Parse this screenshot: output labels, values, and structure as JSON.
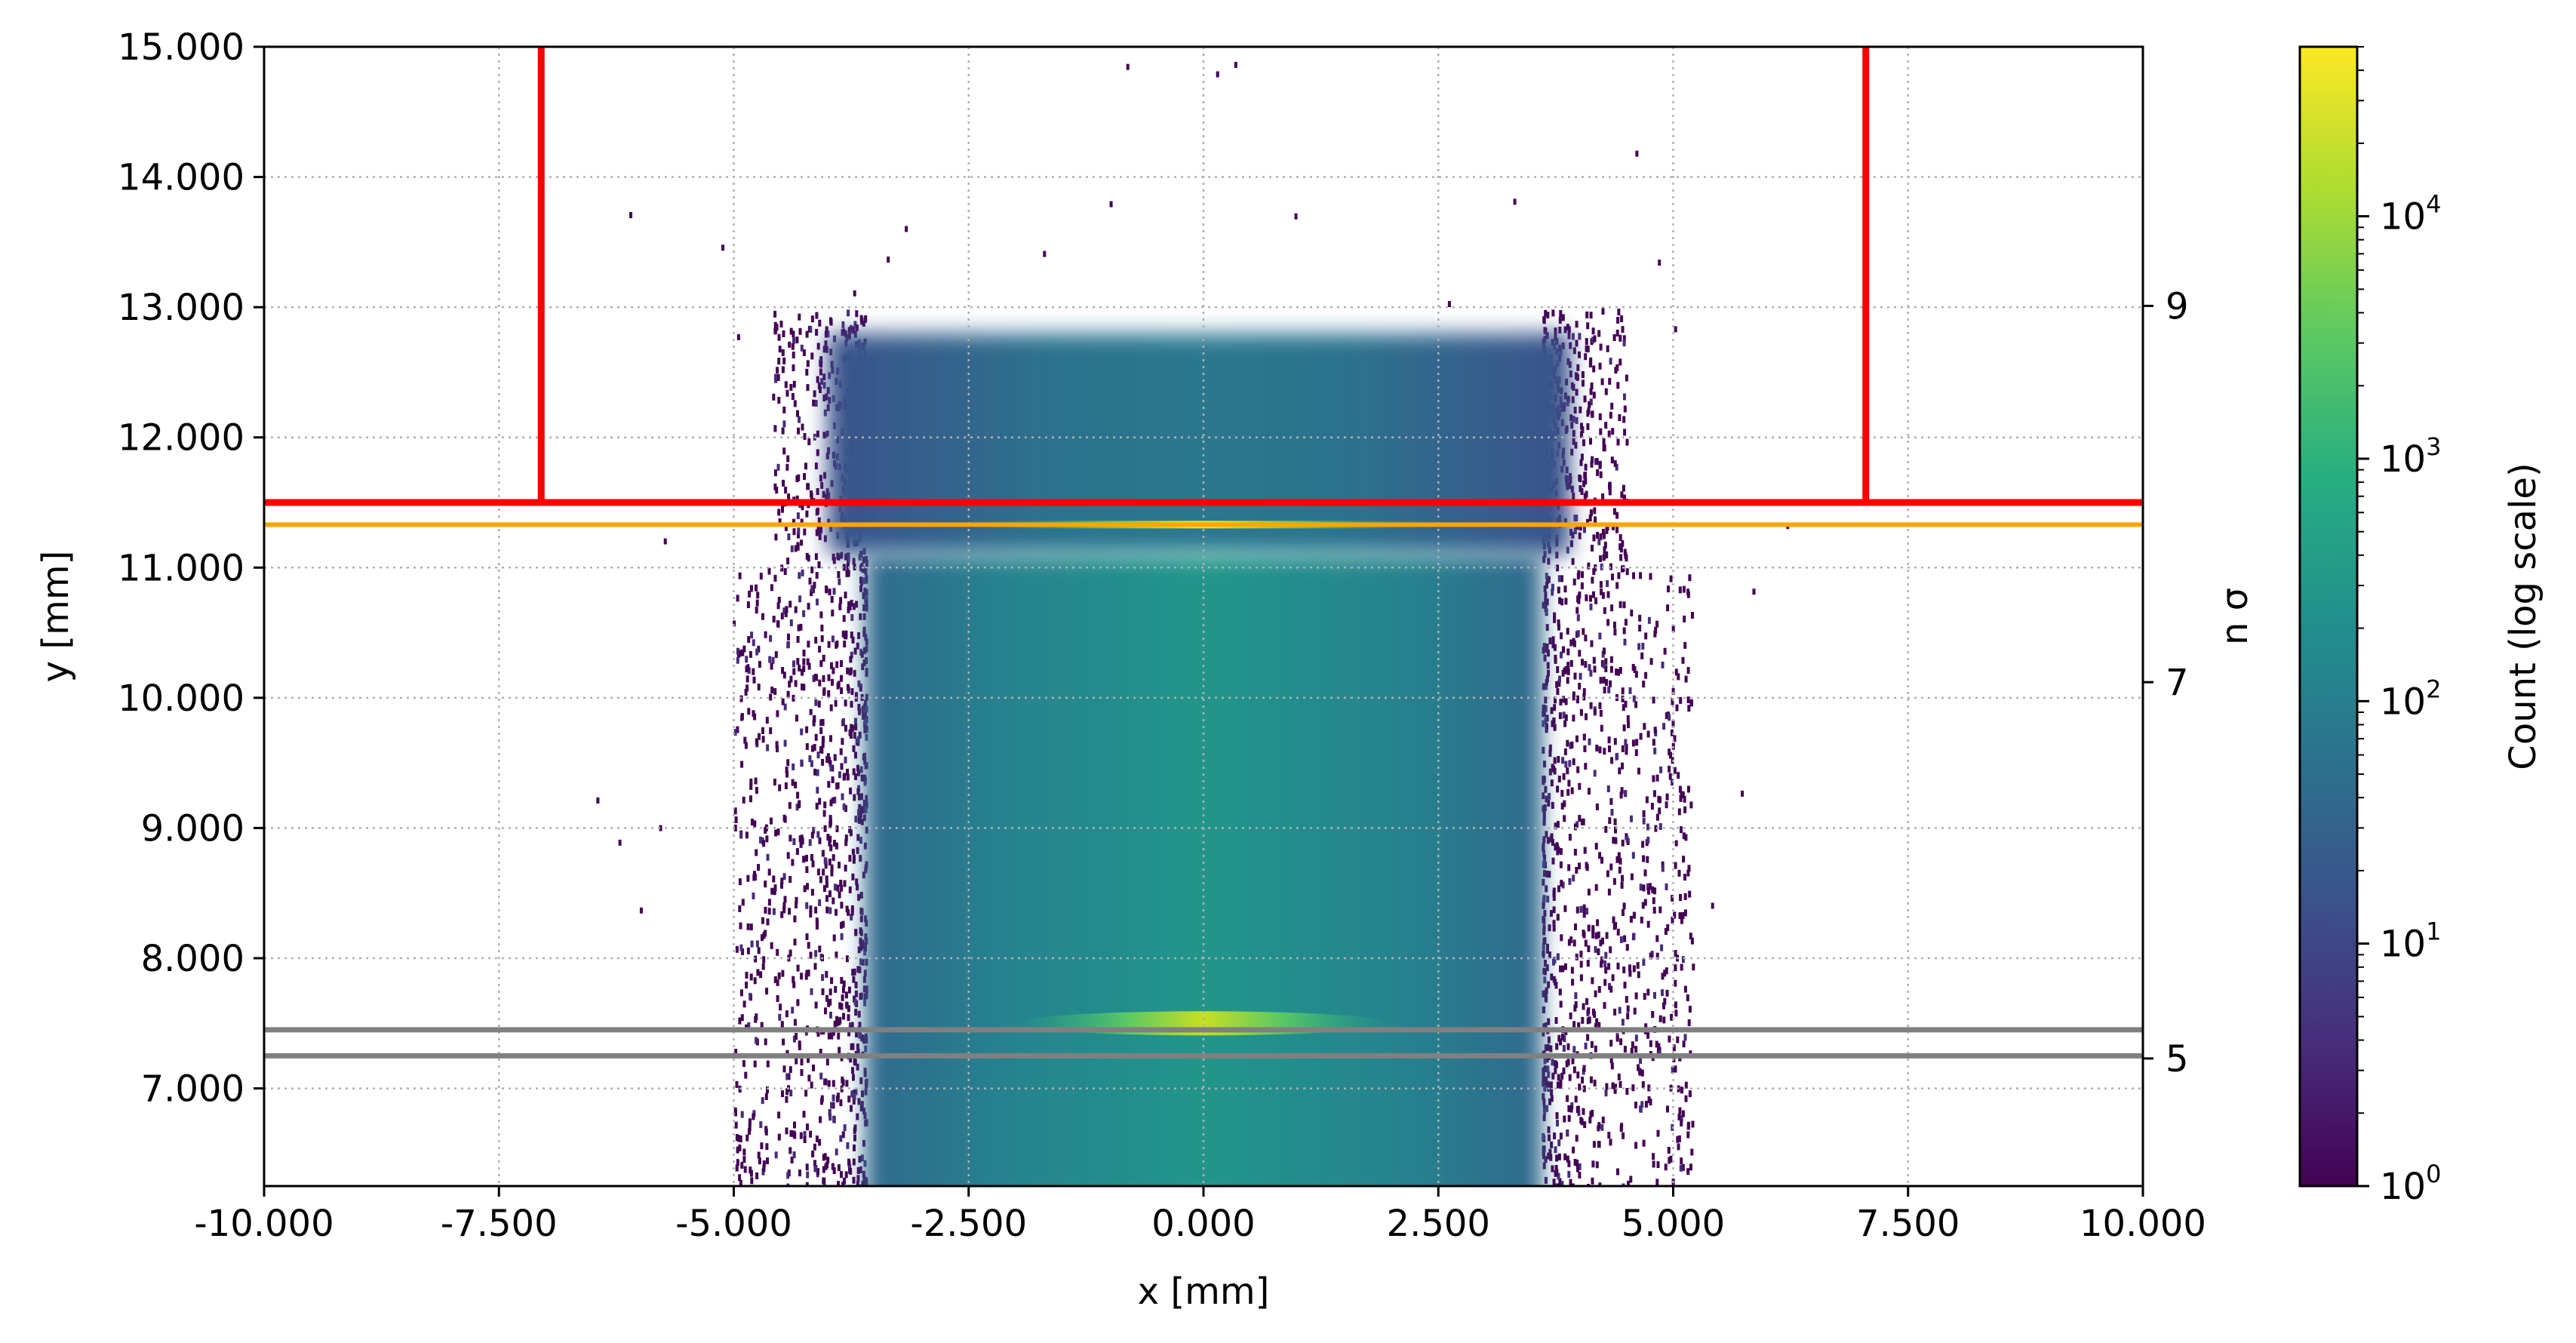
{
  "chart_data": {
    "type": "heatmap",
    "xlabel": "x [mm]",
    "ylabel": "y [mm]",
    "y2label": "n σ",
    "xlim": [
      -10.0,
      10.0
    ],
    "ylim": [
      6.25,
      15.0
    ],
    "x_ticks": [
      -10.0,
      -7.5,
      -5.0,
      -2.5,
      0.0,
      2.5,
      5.0,
      7.5,
      10.0
    ],
    "x_tick_labels": [
      "-10.000",
      "-7.500",
      "-5.000",
      "-2.500",
      "0.000",
      "2.500",
      "5.000",
      "7.500",
      "10.000"
    ],
    "y_ticks": [
      7.0,
      8.0,
      9.0,
      10.0,
      11.0,
      12.0,
      13.0,
      14.0,
      15.0
    ],
    "y_tick_labels": [
      "7.000",
      "8.000",
      "9.000",
      "10.000",
      "11.000",
      "12.000",
      "13.000",
      "14.000",
      "15.000"
    ],
    "right_axis": {
      "ticks": [
        {
          "label": "5",
          "y": 7.23
        },
        {
          "label": "7",
          "y": 10.12
        },
        {
          "label": "9",
          "y": 13.01
        }
      ]
    },
    "grid": true,
    "colorbar": {
      "label": "Count (log scale)",
      "scale": "log",
      "range": [
        1,
        50000
      ],
      "colormap": "viridis",
      "ticks": [
        {
          "value": 1,
          "base": "10",
          "exp": "0"
        },
        {
          "value": 10,
          "base": "10",
          "exp": "1"
        },
        {
          "value": 100,
          "base": "10",
          "exp": "2"
        },
        {
          "value": 1000,
          "base": "10",
          "exp": "3"
        },
        {
          "value": 10000,
          "base": "10",
          "exp": "4"
        }
      ]
    },
    "overlays": {
      "red_jaw": {
        "color": "#ff0000",
        "y": 11.5,
        "x_left": -7.05,
        "x_right": 7.05
      },
      "orange_line": {
        "color": "#ffa500",
        "y": 11.33
      },
      "gray_lines": {
        "color": "#808080",
        "y": [
          7.45,
          7.25
        ]
      }
    },
    "density": {
      "core": {
        "x_range": [
          -3.6,
          3.6
        ],
        "y_range": [
          6.25,
          11.1
        ],
        "level": "high"
      },
      "upper_block": {
        "x_range": [
          -4.0,
          3.9
        ],
        "y_range": [
          11.1,
          12.8
        ],
        "level": "medium"
      },
      "peak_band": {
        "y": 7.5,
        "x_range": [
          -2.0,
          2.0
        ],
        "peak_count": 50000
      },
      "orange_band": {
        "y": 11.33,
        "x_range": [
          -2.5,
          2.5
        ],
        "peak_count": 20000
      },
      "halo": {
        "x_range": [
          -5.0,
          5.2
        ],
        "y_range": [
          6.25,
          13.0
        ],
        "level": "low"
      }
    }
  }
}
